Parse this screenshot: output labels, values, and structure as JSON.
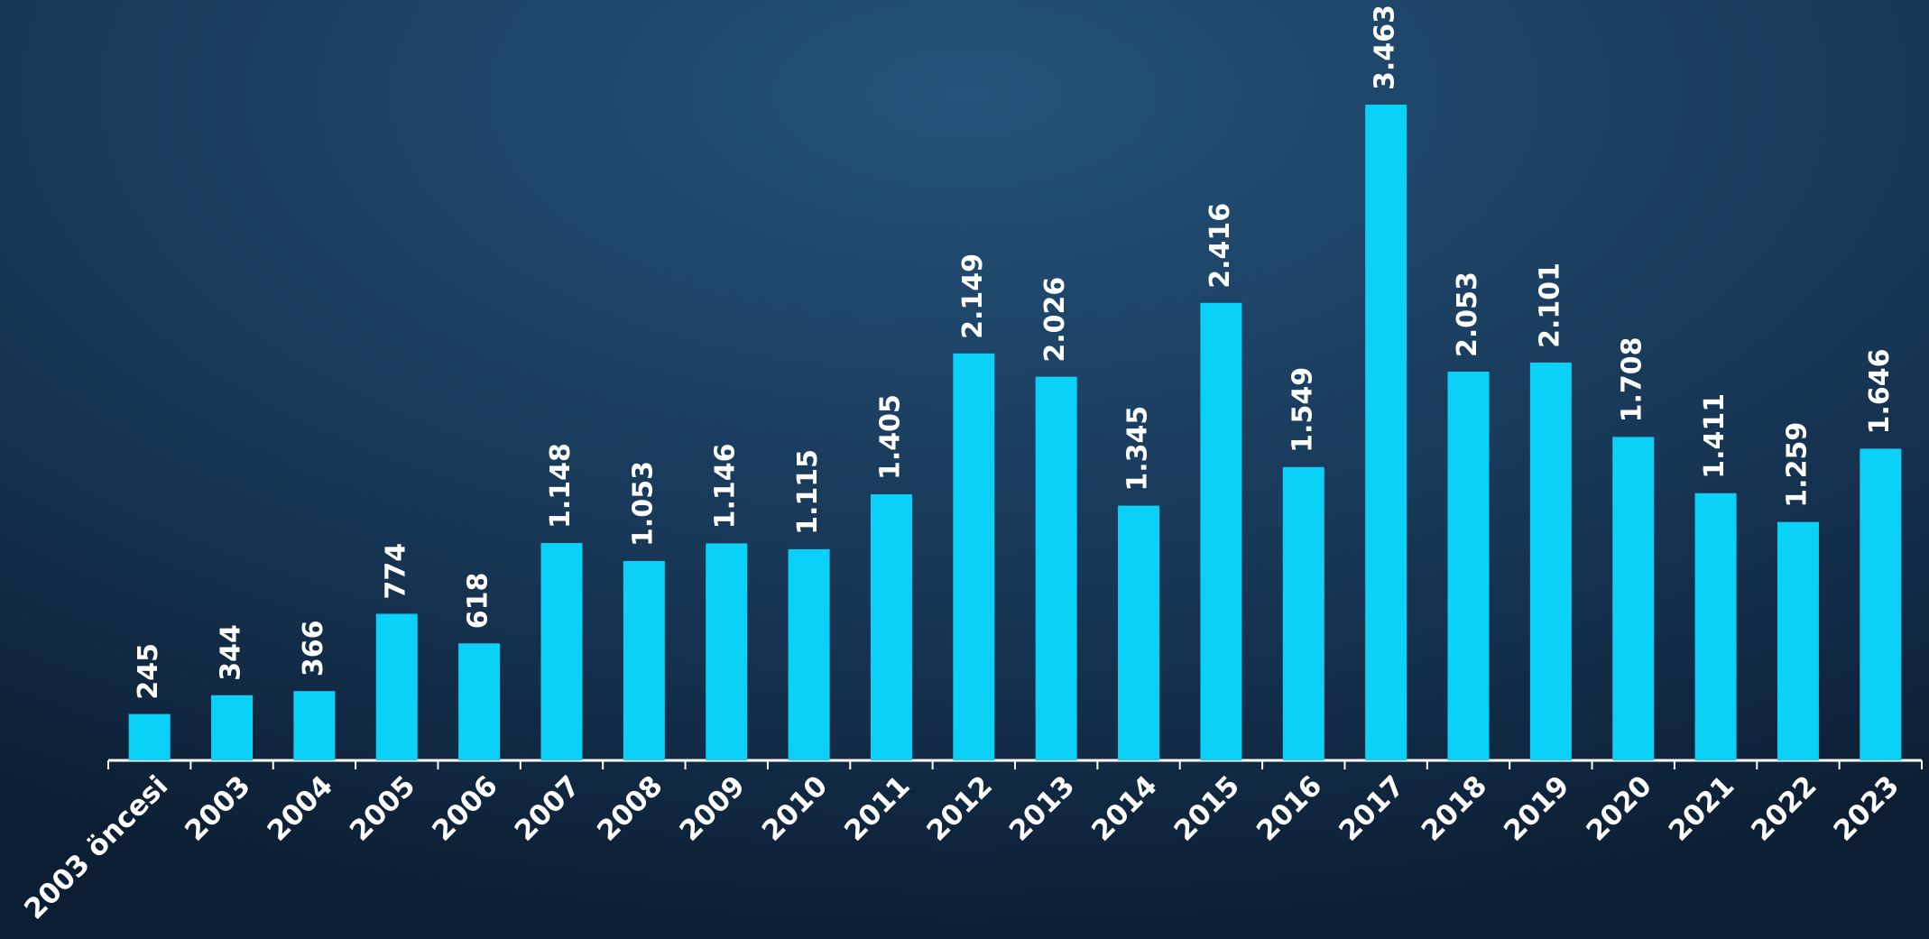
{
  "chart_data": {
    "type": "bar",
    "categories": [
      "2003 öncesi",
      "2003",
      "2004",
      "2005",
      "2006",
      "2007",
      "2008",
      "2009",
      "2010",
      "2011",
      "2012",
      "2013",
      "2014",
      "2015",
      "2016",
      "2017",
      "2018",
      "2019",
      "2020",
      "2021",
      "2022",
      "2023"
    ],
    "values": [
      245,
      344,
      366,
      774,
      618,
      1148,
      1053,
      1146,
      1115,
      1405,
      2149,
      2026,
      1345,
      2416,
      1549,
      3463,
      2053,
      2101,
      1708,
      1411,
      1259,
      1646
    ],
    "value_labels": [
      "245",
      "344",
      "366",
      "774",
      "618",
      "1.148",
      "1.053",
      "1.146",
      "1.115",
      "1.405",
      "2.149",
      "2.026",
      "1.345",
      "2.416",
      "1.549",
      "3.463",
      "2.053",
      "2.101",
      "1.708",
      "1.411",
      "1.259",
      "1.646"
    ],
    "color": "#0bd0f7"
  }
}
